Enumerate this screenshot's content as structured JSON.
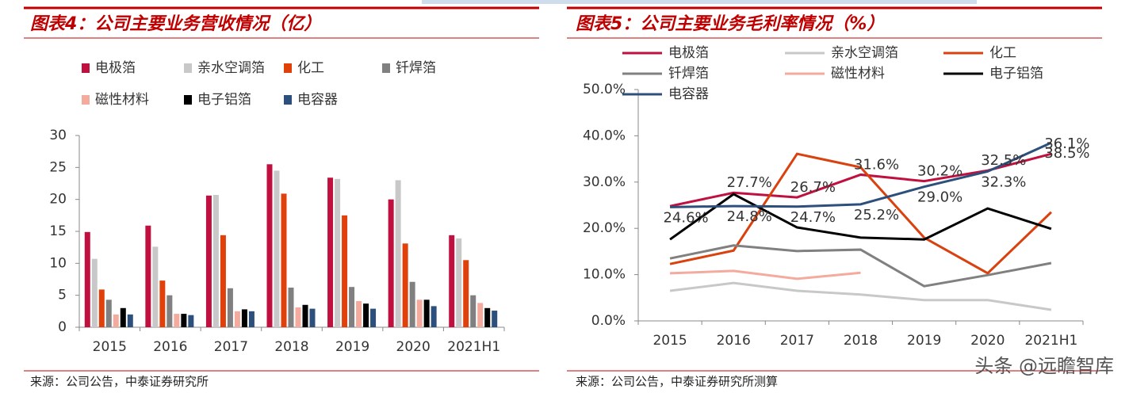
{
  "watermark": "头条 @远瞻智库",
  "chart_data": [
    {
      "type": "bar",
      "title": "图表4：公司主要业务营收情况（亿）",
      "source": "来源：公司公告，中泰证券研究所",
      "categories": [
        "2015",
        "2016",
        "2017",
        "2018",
        "2019",
        "2020",
        "2021H1"
      ],
      "series": [
        {
          "name": "电极箔",
          "color": "#c0103f",
          "values": [
            14.9,
            15.9,
            20.6,
            25.5,
            23.4,
            20.0,
            14.4
          ]
        },
        {
          "name": "亲水空调箔",
          "color": "#c8c8c8",
          "values": [
            10.7,
            12.6,
            20.7,
            24.5,
            23.2,
            23.0,
            13.9
          ]
        },
        {
          "name": "化工",
          "color": "#e0400a",
          "values": [
            5.9,
            7.3,
            14.4,
            20.9,
            17.5,
            13.1,
            10.5
          ]
        },
        {
          "name": "钎焊箔",
          "color": "#808080",
          "values": [
            4.3,
            5.0,
            6.1,
            6.2,
            6.3,
            7.1,
            5.0
          ]
        },
        {
          "name": "磁性材料",
          "color": "#f5aa9e",
          "values": [
            2.0,
            2.1,
            2.5,
            3.1,
            4.1,
            4.3,
            3.8
          ]
        },
        {
          "name": "电子铝箔",
          "color": "#000000",
          "values": [
            3.0,
            2.1,
            2.8,
            3.5,
            3.7,
            4.3,
            3.0
          ]
        },
        {
          "name": "电容器",
          "color": "#2d4f7c",
          "values": [
            2.0,
            1.9,
            2.5,
            2.9,
            2.9,
            3.3,
            2.6
          ]
        }
      ],
      "ylim": [
        0,
        30
      ],
      "yticks": [
        0,
        5,
        10,
        15,
        20,
        25,
        30
      ]
    },
    {
      "type": "line",
      "title": "图表5：公司主要业务毛利率情况（%）",
      "source": "来源：公司公告，中泰证券研究所测算",
      "categories": [
        "2015",
        "2016",
        "2017",
        "2018",
        "2019",
        "2020",
        "2021H1"
      ],
      "series": [
        {
          "name": "电极箔",
          "color": "#c0103f",
          "values": [
            24.8,
            27.7,
            26.7,
            31.6,
            30.2,
            32.5,
            36.1
          ],
          "value_labels": [
            null,
            "27.7%",
            "26.7%",
            "31.6%",
            "30.2%",
            "32.5%",
            "36.1%"
          ]
        },
        {
          "name": "亲水空调箔",
          "color": "#c8c8c8",
          "values": [
            6.5,
            8.2,
            6.5,
            5.7,
            4.5,
            4.5,
            2.4
          ]
        },
        {
          "name": "化工",
          "color": "#d9420f",
          "values": [
            12.3,
            15.2,
            36.1,
            33.2,
            18.0,
            10.3,
            23.5
          ]
        },
        {
          "name": "钎焊箔",
          "color": "#808080",
          "values": [
            13.5,
            16.3,
            15.1,
            15.4,
            7.5,
            9.9,
            12.5
          ]
        },
        {
          "name": "磁性材料",
          "color": "#f5aa9e",
          "values": [
            10.3,
            10.8,
            9.1,
            10.4,
            null,
            null,
            null
          ]
        },
        {
          "name": "电子铝箔",
          "color": "#000000",
          "values": [
            17.6,
            27.4,
            20.2,
            18.0,
            17.6,
            24.3,
            19.9
          ]
        },
        {
          "name": "电容器",
          "color": "#2d4f7c",
          "values": [
            24.6,
            24.8,
            24.7,
            25.2,
            29.0,
            32.3,
            38.5
          ],
          "value_labels": [
            "24.6%",
            "24.8%",
            "24.7%",
            "25.2%",
            "29.0%",
            "32.3%",
            "38.5%"
          ]
        }
      ],
      "ylim": [
        0,
        50
      ],
      "yticks": [
        {
          "value": 0,
          "label": "0.0%"
        },
        {
          "value": 10,
          "label": "10.0%"
        },
        {
          "value": 20,
          "label": "20.0%"
        },
        {
          "value": 30,
          "label": "30.0%"
        },
        {
          "value": 40,
          "label": "40.0%"
        },
        {
          "value": 50,
          "label": "50.0%"
        }
      ]
    }
  ]
}
